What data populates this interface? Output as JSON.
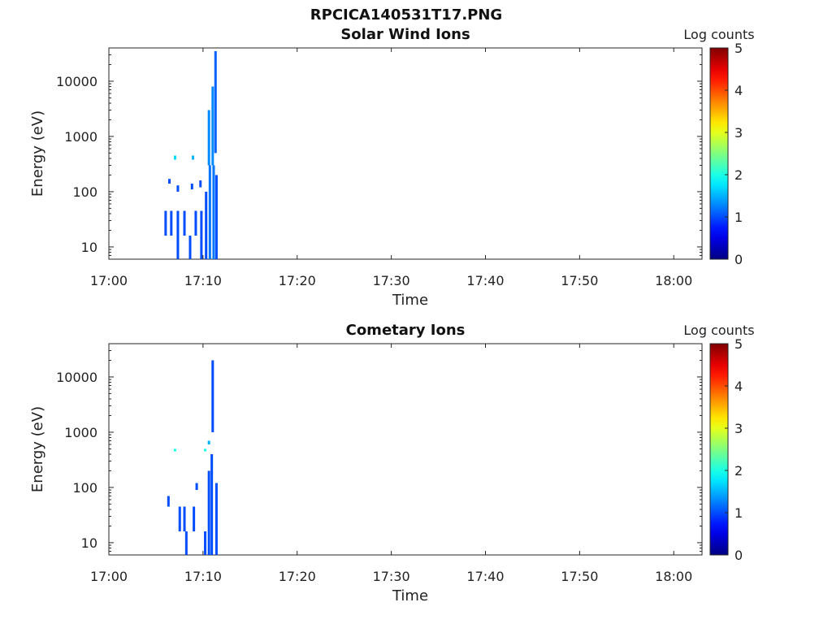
{
  "title": "RPCICA140531T17.PNG",
  "chart_data": [
    {
      "type": "heatmap",
      "title": "Solar Wind Ions",
      "xlabel": "Time",
      "ylabel": "Energy (eV)",
      "x_ticks": [
        "17:00",
        "17:10",
        "17:20",
        "17:30",
        "17:40",
        "17:50",
        "18:00"
      ],
      "x_range": [
        "17:00",
        "18:03"
      ],
      "y_scale": "log",
      "y_ticks": [
        "10",
        "100",
        "1000",
        "10000"
      ],
      "y_range": [
        6,
        40000
      ],
      "colorbar": {
        "label": "Log counts",
        "ticks": [
          "0",
          "1",
          "2",
          "3",
          "4",
          "5"
        ],
        "range": [
          0,
          5
        ]
      },
      "data_time_range": [
        "17:05",
        "17:12"
      ],
      "cells": [
        {
          "t": 5.9,
          "e_lo": 16,
          "e_hi": 45,
          "v": 1
        },
        {
          "t": 6.5,
          "e_lo": 16,
          "e_hi": 45,
          "v": 1
        },
        {
          "t": 7.2,
          "e_lo": 6,
          "e_hi": 45,
          "v": 1
        },
        {
          "t": 7.9,
          "e_lo": 16,
          "e_hi": 45,
          "v": 1
        },
        {
          "t": 8.5,
          "e_lo": 6,
          "e_hi": 16,
          "v": 1
        },
        {
          "t": 9.1,
          "e_lo": 16,
          "e_hi": 45,
          "v": 1
        },
        {
          "t": 9.7,
          "e_lo": 6,
          "e_hi": 45,
          "v": 1
        },
        {
          "t": 10.2,
          "e_lo": 6,
          "e_hi": 100,
          "v": 1
        },
        {
          "t": 10.6,
          "e_lo": 6,
          "e_hi": 300,
          "v": 1.2
        },
        {
          "t": 11.0,
          "e_lo": 6,
          "e_hi": 300,
          "v": 1.2
        },
        {
          "t": 11.3,
          "e_lo": 6,
          "e_hi": 200,
          "v": 1
        },
        {
          "t": 10.5,
          "e_lo": 300,
          "e_hi": 3000,
          "v": 1.3
        },
        {
          "t": 10.9,
          "e_lo": 300,
          "e_hi": 8000,
          "v": 1.3
        },
        {
          "t": 11.2,
          "e_lo": 500,
          "e_hi": 35000,
          "v": 1.1
        },
        {
          "t": 6.3,
          "e_lo": 140,
          "e_hi": 170,
          "v": 1
        },
        {
          "t": 7.2,
          "e_lo": 100,
          "e_hi": 130,
          "v": 1
        },
        {
          "t": 8.7,
          "e_lo": 110,
          "e_hi": 140,
          "v": 1
        },
        {
          "t": 9.6,
          "e_lo": 120,
          "e_hi": 160,
          "v": 1
        },
        {
          "t": 6.9,
          "e_lo": 380,
          "e_hi": 450,
          "v": 1.7
        },
        {
          "t": 8.8,
          "e_lo": 380,
          "e_hi": 450,
          "v": 1.5
        }
      ]
    },
    {
      "type": "heatmap",
      "title": "Cometary Ions",
      "xlabel": "Time",
      "ylabel": "Energy (eV)",
      "x_ticks": [
        "17:00",
        "17:10",
        "17:20",
        "17:30",
        "17:40",
        "17:50",
        "18:00"
      ],
      "x_range": [
        "17:00",
        "18:03"
      ],
      "y_scale": "log",
      "y_ticks": [
        "10",
        "100",
        "1000",
        "10000"
      ],
      "y_range": [
        6,
        40000
      ],
      "colorbar": {
        "label": "Log counts",
        "ticks": [
          "0",
          "1",
          "2",
          "3",
          "4",
          "5"
        ],
        "range": [
          0,
          5
        ]
      },
      "data_time_range": [
        "17:06",
        "17:12"
      ],
      "cells": [
        {
          "t": 6.2,
          "e_lo": 45,
          "e_hi": 70,
          "v": 1
        },
        {
          "t": 7.4,
          "e_lo": 16,
          "e_hi": 45,
          "v": 1
        },
        {
          "t": 7.9,
          "e_lo": 16,
          "e_hi": 45,
          "v": 1
        },
        {
          "t": 8.1,
          "e_lo": 6,
          "e_hi": 16,
          "v": 1
        },
        {
          "t": 8.9,
          "e_lo": 16,
          "e_hi": 45,
          "v": 1
        },
        {
          "t": 9.2,
          "e_lo": 90,
          "e_hi": 120,
          "v": 1
        },
        {
          "t": 10.1,
          "e_lo": 6,
          "e_hi": 16,
          "v": 1
        },
        {
          "t": 10.5,
          "e_lo": 6,
          "e_hi": 200,
          "v": 1
        },
        {
          "t": 10.8,
          "e_lo": 6,
          "e_hi": 400,
          "v": 1
        },
        {
          "t": 11.3,
          "e_lo": 6,
          "e_hi": 120,
          "v": 1
        },
        {
          "t": 6.9,
          "e_lo": 450,
          "e_hi": 500,
          "v": 2
        },
        {
          "t": 10.1,
          "e_lo": 450,
          "e_hi": 500,
          "v": 2
        },
        {
          "t": 10.5,
          "e_lo": 600,
          "e_hi": 700,
          "v": 1.5
        },
        {
          "t": 10.9,
          "e_lo": 1000,
          "e_hi": 20000,
          "v": 1
        }
      ]
    }
  ]
}
